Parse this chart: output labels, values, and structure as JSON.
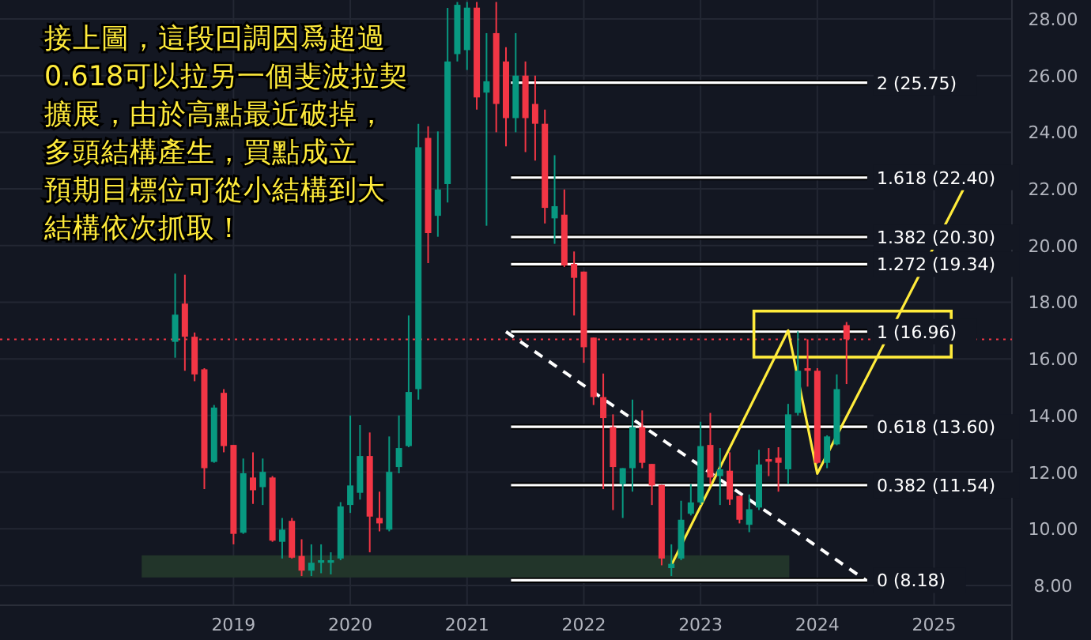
{
  "chart_data": {
    "type": "candlestick",
    "annotations": [
      "接上圖，這段回調因爲超過",
      "0.618可以拉另一個斐波拉契",
      "擴展，由於高點最近破掉，",
      "多頭結構產生，買點成立",
      "預期目標位可從小結構到大",
      "結構依次抓取！"
    ],
    "x": [
      "2018-07",
      "2018-08",
      "2018-09",
      "2018-10",
      "2018-11",
      "2018-12",
      "2019-01",
      "2019-02",
      "2019-03",
      "2019-04",
      "2019-05",
      "2019-06",
      "2019-07",
      "2019-08",
      "2019-09",
      "2019-10",
      "2019-11",
      "2019-12",
      "2020-01",
      "2020-02",
      "2020-03",
      "2020-04",
      "2020-05",
      "2020-06",
      "2020-07",
      "2020-08",
      "2020-09",
      "2020-10",
      "2020-11",
      "2020-12",
      "2021-01",
      "2021-02",
      "2021-03",
      "2021-04",
      "2021-05",
      "2021-06",
      "2021-07",
      "2021-08",
      "2021-09",
      "2021-10",
      "2021-11",
      "2021-12",
      "2022-01",
      "2022-02",
      "2022-03",
      "2022-04",
      "2022-05",
      "2022-06",
      "2022-07",
      "2022-08",
      "2022-09",
      "2022-10",
      "2022-11",
      "2022-12",
      "2023-01",
      "2023-02",
      "2023-03",
      "2023-04",
      "2023-05",
      "2023-06",
      "2023-07",
      "2023-08",
      "2023-09",
      "2023-10",
      "2023-11",
      "2023-12",
      "2024-01",
      "2024-02",
      "2024-03",
      "2024-04"
    ],
    "ohlc": [
      [
        16.6,
        19.01,
        16.04,
        17.56
      ],
      [
        17.95,
        18.97,
        15.58,
        16.78
      ],
      [
        16.78,
        16.93,
        15.21,
        15.45
      ],
      [
        15.63,
        15.67,
        11.4,
        12.14
      ],
      [
        12.36,
        14.37,
        12.33,
        14.28
      ],
      [
        14.8,
        14.93,
        12.7,
        12.92
      ],
      [
        12.96,
        12.96,
        9.45,
        9.82
      ],
      [
        9.86,
        12.48,
        9.82,
        11.96
      ],
      [
        11.81,
        12.7,
        10.88,
        11.36
      ],
      [
        11.47,
        12.48,
        10.84,
        12.01
      ],
      [
        11.81,
        11.86,
        9.54,
        9.58
      ],
      [
        9.54,
        10.38,
        8.95,
        9.97
      ],
      [
        10.28,
        10.38,
        8.95,
        8.98
      ],
      [
        9.04,
        9.63,
        8.33,
        8.52
      ],
      [
        8.52,
        9.45,
        8.33,
        8.8
      ],
      [
        8.8,
        9.45,
        8.43,
        8.89
      ],
      [
        8.8,
        9.17,
        8.39,
        8.89
      ],
      [
        8.95,
        10.94,
        8.89,
        10.79
      ],
      [
        10.84,
        14.0,
        10.56,
        11.53
      ],
      [
        11.27,
        13.66,
        11.03,
        12.57
      ],
      [
        12.57,
        13.4,
        9.17,
        10.43
      ],
      [
        10.38,
        11.31,
        9.91,
        10.19
      ],
      [
        9.97,
        13.26,
        9.91,
        12.01
      ],
      [
        12.18,
        14.0,
        11.96,
        12.85
      ],
      [
        12.92,
        17.53,
        12.88,
        14.83
      ],
      [
        14.93,
        24.3,
        14.56,
        23.47
      ],
      [
        23.8,
        24.21,
        19.38,
        20.44
      ],
      [
        21.05,
        24.03,
        20.31,
        21.98
      ],
      [
        22.17,
        28.39,
        21.52,
        26.5
      ],
      [
        26.76,
        28.6,
        26.5,
        28.5
      ],
      [
        26.9,
        28.6,
        26.2,
        28.4
      ],
      [
        28.4,
        28.6,
        24.8,
        25.23
      ],
      [
        25.4,
        27.5,
        20.7,
        25.8
      ],
      [
        27.5,
        28.6,
        24.0,
        25.0
      ],
      [
        26.5,
        27.0,
        23.5,
        24.5
      ],
      [
        24.5,
        27.5,
        24.0,
        26.0
      ],
      [
        26.0,
        26.5,
        23.3,
        24.5
      ],
      [
        25.0,
        26.0,
        23.0,
        24.3
      ],
      [
        24.3,
        24.8,
        20.78,
        21.33
      ],
      [
        20.96,
        23.19,
        20.06,
        21.39
      ],
      [
        21.09,
        21.98,
        19.24,
        19.3
      ],
      [
        19.35,
        19.79,
        17.53,
        18.86
      ],
      [
        19.08,
        19.08,
        15.86,
        16.41
      ],
      [
        16.75,
        16.75,
        14.37,
        14.65
      ],
      [
        14.65,
        15.48,
        11.4,
        13.91
      ],
      [
        13.59,
        14.04,
        10.66,
        12.18
      ],
      [
        11.58,
        12.14,
        10.38,
        12.14
      ],
      [
        12.14,
        14.56,
        11.31,
        13.59
      ],
      [
        13.59,
        14.18,
        12.14,
        12.33
      ],
      [
        12.29,
        12.29,
        10.84,
        11.53
      ],
      [
        11.55,
        11.55,
        8.71,
        8.95
      ],
      [
        8.61,
        9.45,
        8.33,
        8.76
      ],
      [
        8.95,
        10.99,
        8.89,
        10.32
      ],
      [
        10.53,
        11.58,
        10.47,
        10.93
      ],
      [
        10.93,
        13.78,
        10.84,
        12.92
      ],
      [
        12.96,
        14.09,
        11.58,
        11.81
      ],
      [
        11.86,
        12.85,
        10.84,
        12.1
      ],
      [
        12.05,
        12.7,
        10.84,
        11.03
      ],
      [
        11.16,
        11.16,
        10.19,
        10.32
      ],
      [
        10.14,
        11.21,
        9.88,
        10.69
      ],
      [
        10.75,
        12.79,
        10.66,
        12.27
      ],
      [
        12.46,
        12.85,
        11.86,
        12.37
      ],
      [
        12.51,
        12.88,
        11.31,
        12.33
      ],
      [
        12.1,
        14.41,
        11.58,
        14.04
      ],
      [
        14.09,
        16.97,
        14.0,
        15.58
      ],
      [
        15.67,
        16.69,
        15.02,
        15.58
      ],
      [
        15.58,
        15.67,
        12.3,
        12.33
      ],
      [
        12.33,
        13.3,
        12.14,
        13.26
      ],
      [
        12.98,
        15.45,
        12.95,
        14.93
      ],
      [
        17.19,
        17.3,
        15.11,
        16.69
      ]
    ],
    "colors": [
      "#089981",
      "#f23645",
      "#f23645",
      "#f23645",
      "#089981",
      "#f23645",
      "#f23645",
      "#089981",
      "#f23645",
      "#089981",
      "#f23645",
      "#089981",
      "#f23645",
      "#f23645",
      "#089981",
      "#089981",
      "#089981",
      "#089981",
      "#089981",
      "#089981",
      "#f23645",
      "#f23645",
      "#089981",
      "#089981",
      "#089981",
      "#089981",
      "#f23645",
      "#089981",
      "#089981",
      "#089981",
      "#089981",
      "#f23645",
      "#089981",
      "#f23645",
      "#f23645",
      "#089981",
      "#f23645",
      "#f23645",
      "#f23645",
      "#089981",
      "#f23645",
      "#f23645",
      "#f23645",
      "#f23645",
      "#f23645",
      "#f23645",
      "#089981",
      "#089981",
      "#f23645",
      "#f23645",
      "#f23645",
      "#089981",
      "#089981",
      "#089981",
      "#089981",
      "#f23645",
      "#089981",
      "#f23645",
      "#f23645",
      "#089981",
      "#089981",
      "#f23645",
      "#f23645",
      "#089981",
      "#089981",
      "#f23645",
      "#f23645",
      "#089981",
      "#089981",
      "#f23645"
    ],
    "series": [
      {
        "type": "line",
        "color": "#ffeb3b",
        "x": [
          "2022-10",
          "2023-10",
          "2024-01",
          "2025-04"
        ],
        "values": [
          8.72,
          17.0,
          11.95,
          21.98
        ]
      },
      {
        "type": "line",
        "color": "#ffffff",
        "line_style": "dashed",
        "x": [
          "2021-05",
          "2024-06"
        ],
        "values": [
          16.96,
          8.18
        ]
      }
    ],
    "ref_lines": [
      {
        "axis": "y",
        "value": 25.75,
        "label": "2 (25.75)",
        "color": "#ffffff"
      },
      {
        "axis": "y",
        "value": 22.4,
        "label": "1.618 (22.40)",
        "color": "#ffffff"
      },
      {
        "axis": "y",
        "value": 20.3,
        "label": "1.382 (20.30)",
        "color": "#ffffff"
      },
      {
        "axis": "y",
        "value": 19.34,
        "label": "1.272 (19.34)",
        "color": "#ffffff"
      },
      {
        "axis": "y",
        "value": 16.96,
        "label": "1 (16.96)",
        "color": "#ffffff"
      },
      {
        "axis": "y",
        "value": 13.6,
        "label": "0.618 (13.60)",
        "color": "#ffffff"
      },
      {
        "axis": "y",
        "value": 11.54,
        "label": "0.382 (11.54)",
        "color": "#ffffff"
      },
      {
        "axis": "y",
        "value": 8.18,
        "label": "0 (8.18)",
        "color": "#ffffff"
      },
      {
        "axis": "y",
        "value": 16.69,
        "color": "#f23645",
        "line_style": "dotted"
      }
    ],
    "bands": [
      {
        "axis": "y",
        "from": 8.28,
        "to": 9.06,
        "color": "#22352a"
      }
    ],
    "xlim": [
      "2017-01",
      "2025-09"
    ],
    "xticks": [
      {
        "value": "2019",
        "label": "2019"
      },
      {
        "value": "2020",
        "label": "2020"
      },
      {
        "value": "2021",
        "label": "2021"
      },
      {
        "value": "2022",
        "label": "2022"
      },
      {
        "value": "2023",
        "label": "2023"
      },
      {
        "value": "2024",
        "label": "2024"
      },
      {
        "value": "2025",
        "label": "2025"
      }
    ],
    "ylim": [
      7.3,
      28.67
    ],
    "yticks": [
      {
        "value": 8,
        "label": "8.00"
      },
      {
        "value": 10,
        "label": "10.00"
      },
      {
        "value": 12,
        "label": "12.00"
      },
      {
        "value": 14,
        "label": "14.00"
      },
      {
        "value": 16,
        "label": "16.00"
      },
      {
        "value": 18,
        "label": "18.00"
      },
      {
        "value": 20,
        "label": "20.00"
      },
      {
        "value": 22,
        "label": "22.00"
      },
      {
        "value": 24,
        "label": "24.00"
      },
      {
        "value": 26,
        "label": "26.00"
      },
      {
        "value": 28,
        "label": "28.00"
      }
    ],
    "grid": true
  }
}
